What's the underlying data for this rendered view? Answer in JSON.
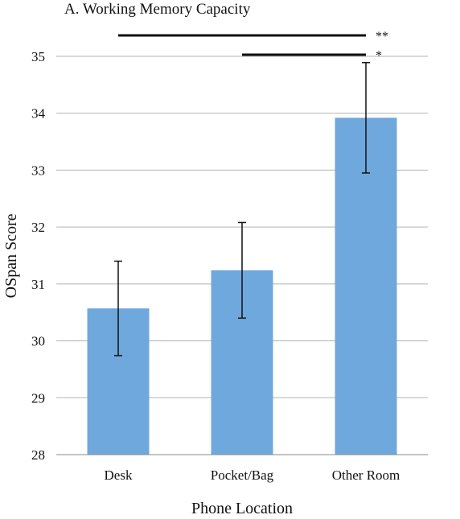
{
  "chart_data": {
    "type": "bar",
    "title": "A. Working Memory Capacity",
    "xlabel": "Phone Location",
    "ylabel": "OSpan Score",
    "categories": [
      "Desk",
      "Pocket/Bag",
      "Other Room"
    ],
    "values": [
      30.57,
      31.24,
      33.92
    ],
    "error": [
      0.83,
      0.84,
      0.97
    ],
    "ylim": [
      28,
      35
    ],
    "yticks": [
      "28",
      "29",
      "30",
      "31",
      "32",
      "33",
      "34",
      "35"
    ],
    "grid": true,
    "bar_color": "#6fa8dc",
    "significance": [
      {
        "from": "Desk",
        "to": "Other Room",
        "label": "**"
      },
      {
        "from": "Pocket/Bag",
        "to": "Other Room",
        "label": "*"
      }
    ]
  }
}
